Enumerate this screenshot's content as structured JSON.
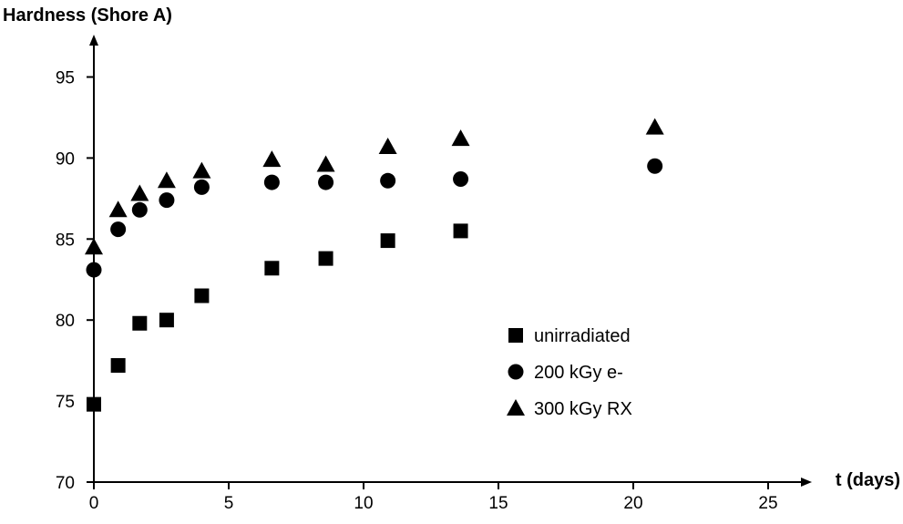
{
  "chart_data": {
    "type": "scatter",
    "ylabel": "Hardness (Shore A)",
    "xlabel": "t (days)",
    "xlim": [
      0,
      29
    ],
    "ylim": [
      70,
      98
    ],
    "xticks": [
      0,
      5,
      10,
      15,
      20,
      25
    ],
    "yticks": [
      70,
      75,
      80,
      85,
      90,
      95
    ],
    "grid": false,
    "legend_position": "right-center",
    "series": [
      {
        "name": "unirradiated",
        "marker": "square",
        "color": "#000000",
        "points": [
          [
            0,
            74.8
          ],
          [
            0.9,
            77.2
          ],
          [
            1.7,
            79.8
          ],
          [
            2.7,
            80.0
          ],
          [
            4.0,
            81.5
          ],
          [
            6.6,
            83.2
          ],
          [
            8.6,
            83.8
          ],
          [
            10.9,
            84.9
          ],
          [
            13.6,
            85.5
          ]
        ]
      },
      {
        "name": "200 kGy e-",
        "marker": "circle",
        "color": "#000000",
        "points": [
          [
            0,
            83.1
          ],
          [
            0.9,
            85.6
          ],
          [
            1.7,
            86.8
          ],
          [
            2.7,
            87.4
          ],
          [
            4.0,
            88.2
          ],
          [
            6.6,
            88.5
          ],
          [
            8.6,
            88.5
          ],
          [
            10.9,
            88.6
          ],
          [
            13.6,
            88.7
          ],
          [
            20.8,
            89.5
          ]
        ]
      },
      {
        "name": "300 kGy RX",
        "marker": "triangle",
        "color": "#000000",
        "points": [
          [
            0,
            84.5
          ],
          [
            0.9,
            86.8
          ],
          [
            1.7,
            87.8
          ],
          [
            2.7,
            88.6
          ],
          [
            4.0,
            89.2
          ],
          [
            6.6,
            89.9
          ],
          [
            8.6,
            89.6
          ],
          [
            10.9,
            90.7
          ],
          [
            13.6,
            91.2
          ],
          [
            20.8,
            91.9
          ]
        ]
      }
    ]
  }
}
